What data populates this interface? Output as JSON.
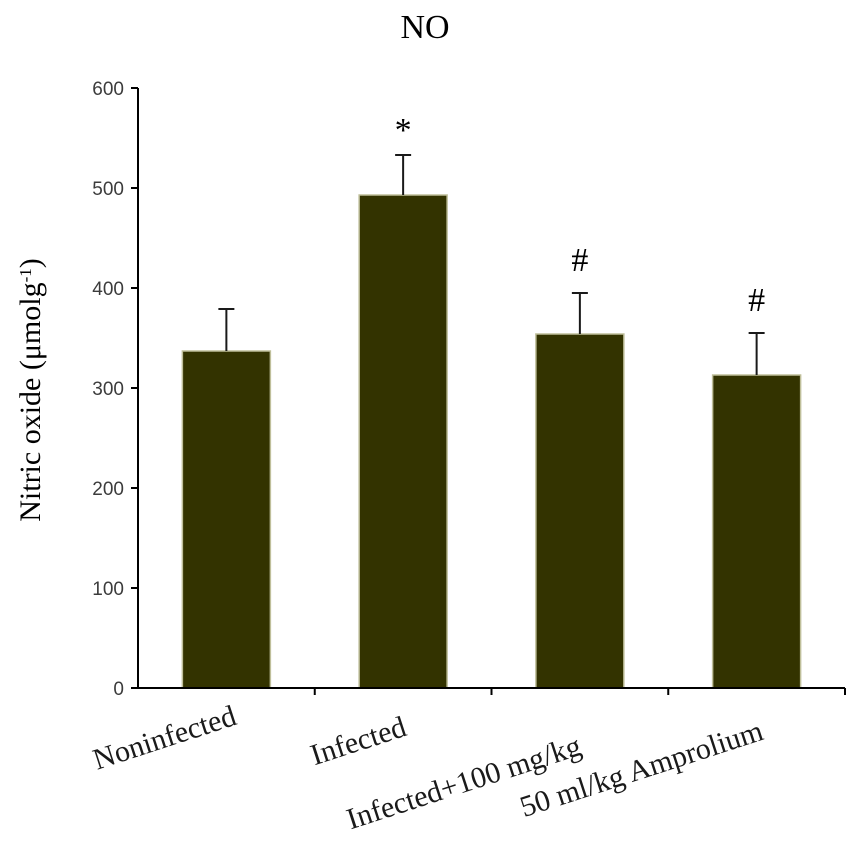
{
  "chart_data": {
    "type": "bar",
    "title": "NO",
    "ylabel": "Nitric oxide (μmolg-1)",
    "ylabel_parts": {
      "main": "Nitric oxide (μmolg",
      "sup": "-1",
      "close": ")"
    },
    "xlabel": "",
    "categories": [
      "Noninfected",
      "Infected",
      "Infected+100 mg/kg",
      "50 ml/kg Amprolium"
    ],
    "values": [
      337,
      493,
      354,
      313
    ],
    "errors": [
      42,
      40,
      41,
      42
    ],
    "annotations": [
      "",
      "*",
      "#",
      "#"
    ],
    "ylim": [
      0,
      600
    ],
    "yticks": [
      0,
      100,
      200,
      300,
      400,
      500,
      600
    ],
    "ytick_labels": [
      "0",
      "100",
      "200",
      "300",
      "400",
      "500",
      "600"
    ],
    "grid": false,
    "legend": "none",
    "colors": {
      "bar": "#333300",
      "bar_edge": "#bfbf9a",
      "axis": "#000000"
    }
  }
}
